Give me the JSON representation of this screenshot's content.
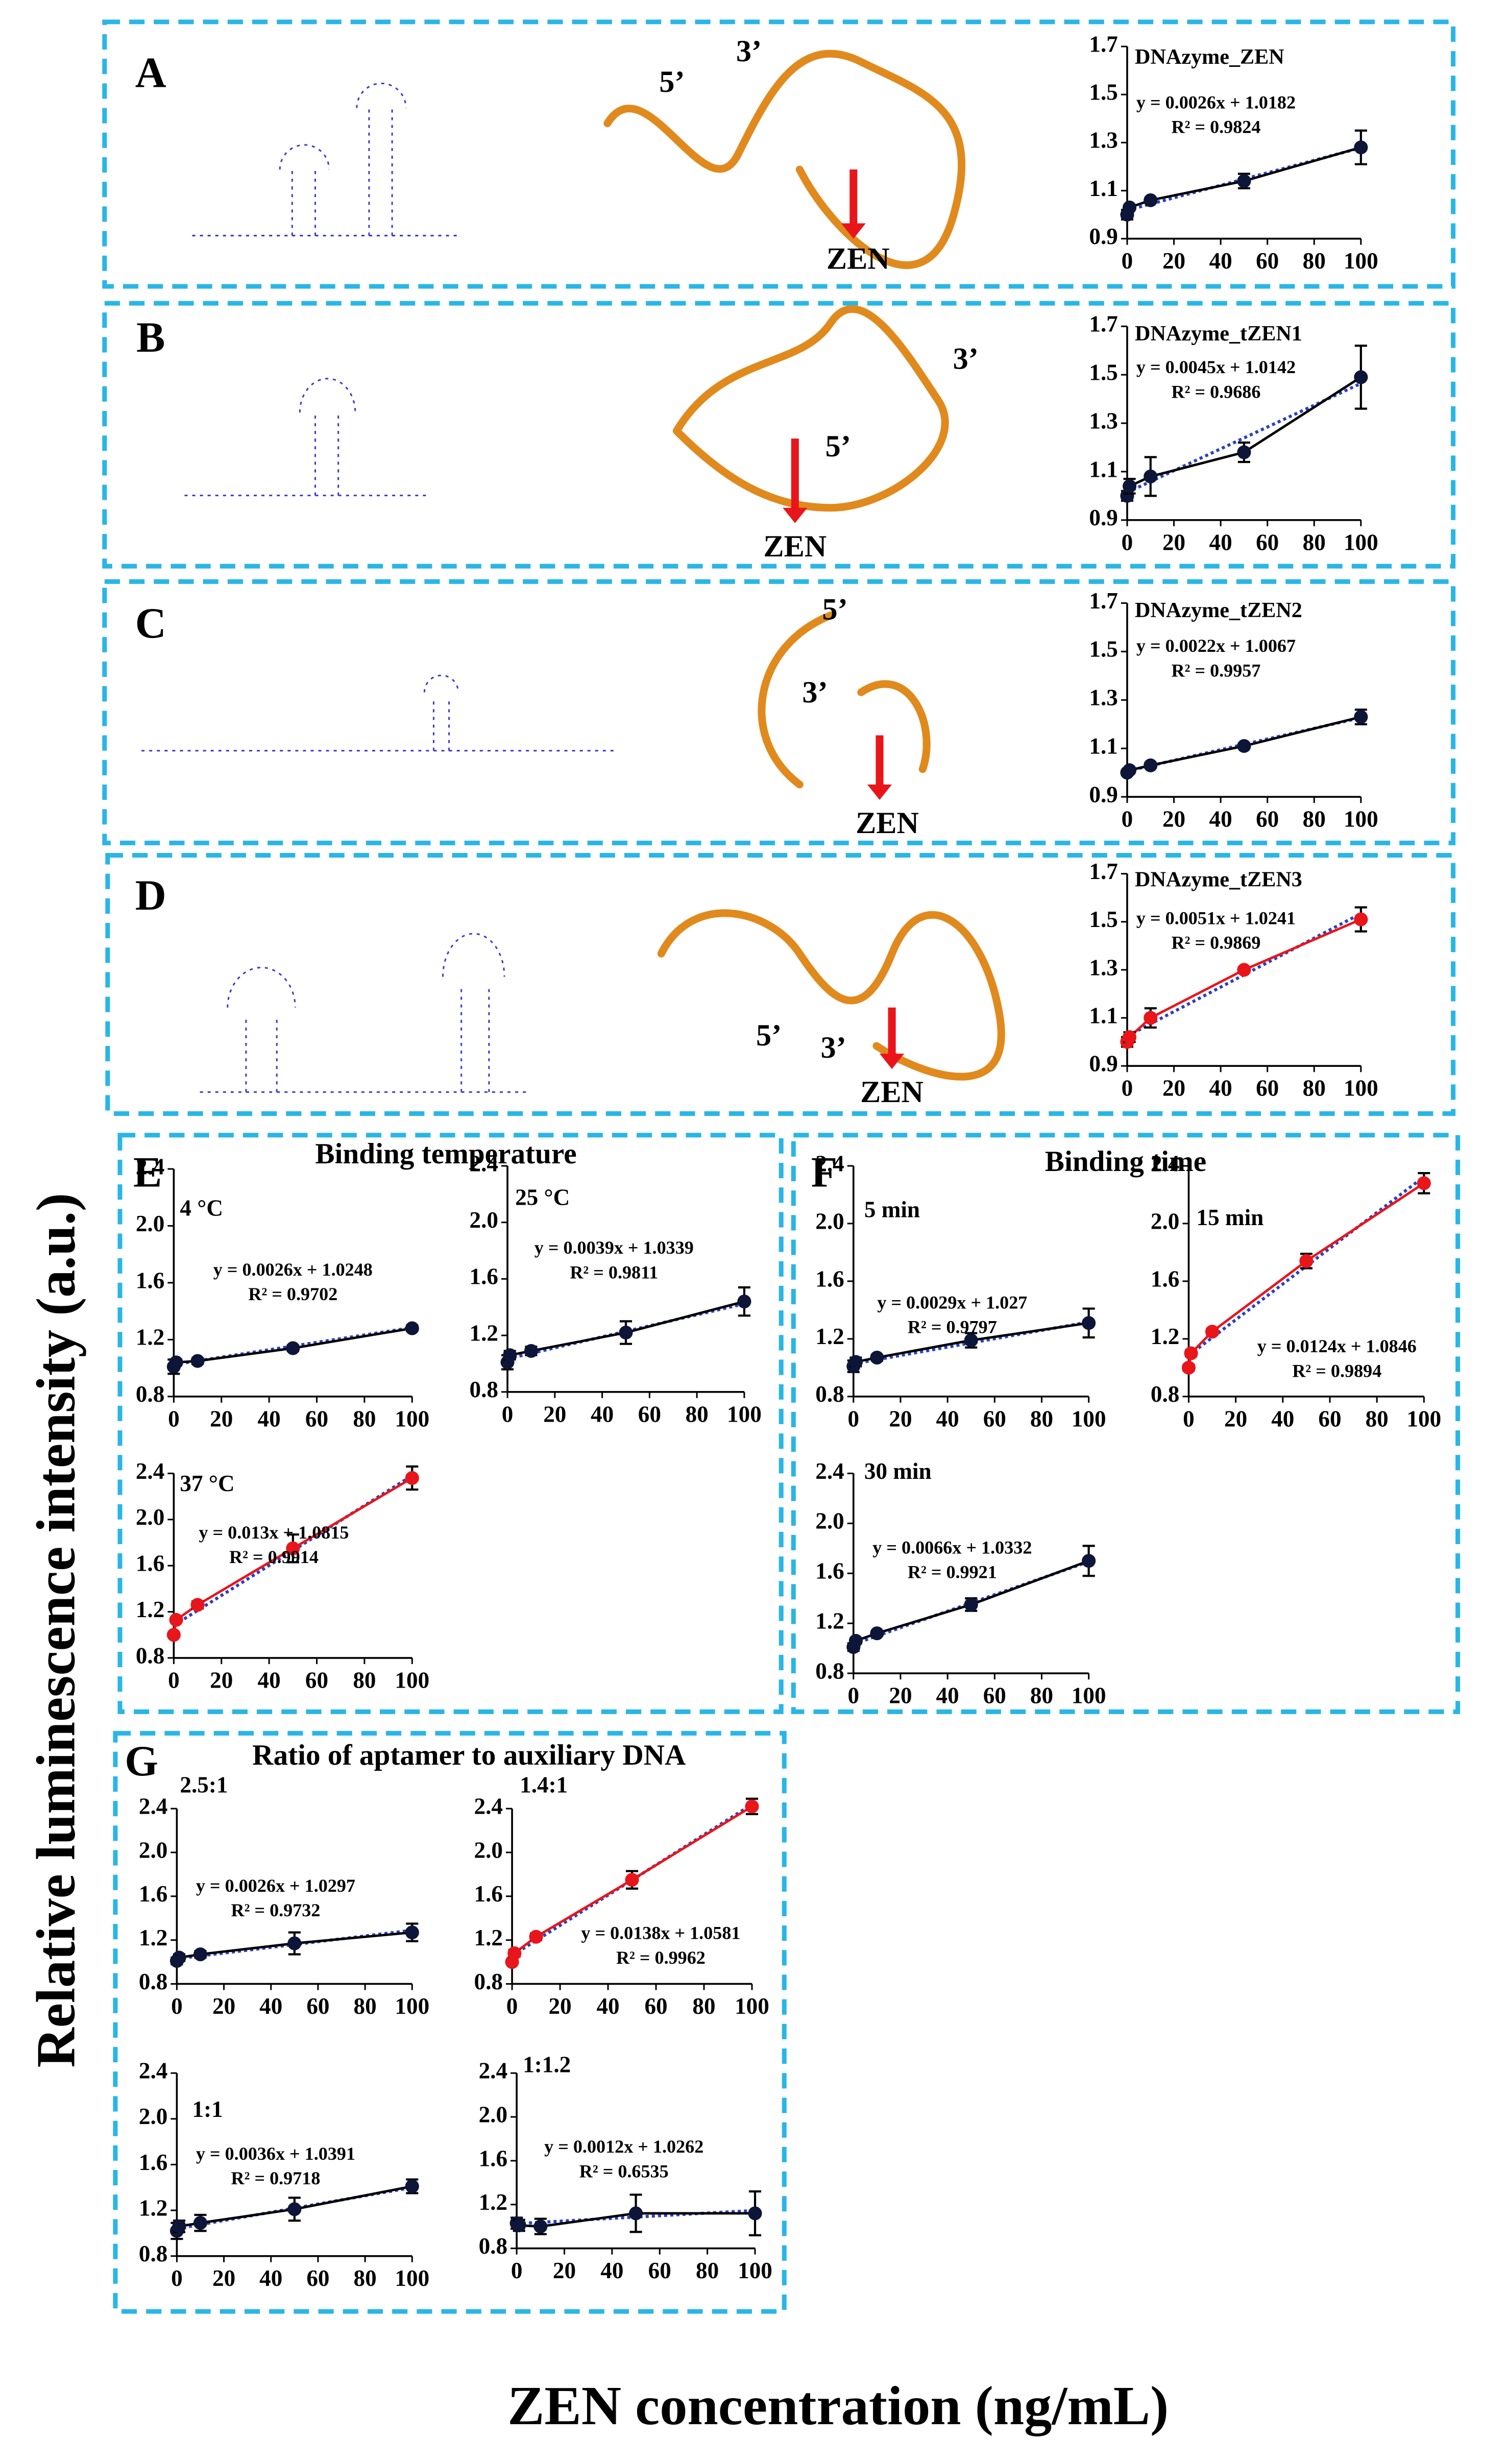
{
  "figure": {
    "y_label": "Relative luminescence intensity (a.u.)",
    "x_label": "ZEN concentration (ng/mL)",
    "panels": [
      "A",
      "B",
      "C",
      "D",
      "E",
      "F",
      "G"
    ],
    "groups": [
      "Binding temperature",
      "Binding time",
      "Ratio of aptamer to auxiliary DNA"
    ]
  },
  "structures": [
    {
      "five": "5’",
      "three": "3’",
      "target": "ZEN"
    },
    {
      "five": "5’",
      "three": "3’",
      "target": "ZEN"
    },
    {
      "five": "5’",
      "three": "3’",
      "target": "ZEN"
    },
    {
      "five": "5’",
      "three": "3’",
      "target": "ZEN"
    }
  ],
  "chart_data": [
    {
      "type": "line",
      "title": "DNAzyme_ZEN",
      "equation": "y = 0.0026x + 1.0182",
      "r2": "R² = 0.9824",
      "fit": {
        "slope": 0.0026,
        "intercept": 1.0182
      },
      "x": [
        0,
        1,
        10,
        50,
        100
      ],
      "values": [
        1.0,
        1.03,
        1.06,
        1.14,
        1.28
      ],
      "errors": [
        0.02,
        0.01,
        0.01,
        0.03,
        0.07
      ],
      "color": "#000000",
      "fit_color": "#2a3fc4",
      "xlim": [
        0,
        100
      ],
      "ylim": [
        0.9,
        1.7
      ],
      "xticks": [
        0,
        20,
        40,
        60,
        80,
        100
      ],
      "yticks": [
        0.9,
        1.1,
        1.3,
        1.5,
        1.7
      ]
    },
    {
      "type": "line",
      "title": "DNAzyme_tZEN1",
      "equation": "y = 0.0045x + 1.0142",
      "r2": "R² = 0.9686",
      "fit": {
        "slope": 0.0045,
        "intercept": 1.0142
      },
      "x": [
        0,
        1,
        10,
        50,
        100
      ],
      "values": [
        1.0,
        1.04,
        1.08,
        1.18,
        1.49
      ],
      "errors": [
        0.02,
        0.03,
        0.08,
        0.04,
        0.13
      ],
      "color": "#000000",
      "fit_color": "#2a3fc4",
      "xlim": [
        0,
        100
      ],
      "ylim": [
        0.9,
        1.7
      ],
      "xticks": [
        0,
        20,
        40,
        60,
        80,
        100
      ],
      "yticks": [
        0.9,
        1.1,
        1.3,
        1.5,
        1.7
      ]
    },
    {
      "type": "line",
      "title": "DNAzyme_tZEN2",
      "equation": "y = 0.0022x + 1.0067",
      "r2": "R² = 0.9957",
      "fit": {
        "slope": 0.0022,
        "intercept": 1.0067
      },
      "x": [
        0,
        1,
        10,
        50,
        100
      ],
      "values": [
        1.0,
        1.01,
        1.03,
        1.11,
        1.23
      ],
      "errors": [
        0.01,
        0.01,
        0.01,
        0.01,
        0.03
      ],
      "color": "#000000",
      "fit_color": "#2a3fc4",
      "xlim": [
        0,
        100
      ],
      "ylim": [
        0.9,
        1.7
      ],
      "xticks": [
        0,
        20,
        40,
        60,
        80,
        100
      ],
      "yticks": [
        0.9,
        1.1,
        1.3,
        1.5,
        1.7
      ]
    },
    {
      "type": "line",
      "title": "DNAzyme_tZEN3",
      "equation": "y = 0.0051x + 1.0241",
      "r2": "R² = 0.9869",
      "fit": {
        "slope": 0.0051,
        "intercept": 1.0241
      },
      "x": [
        0,
        1,
        10,
        50,
        100
      ],
      "values": [
        1.0,
        1.02,
        1.1,
        1.3,
        1.51
      ],
      "errors": [
        0.02,
        0.02,
        0.04,
        0.01,
        0.05
      ],
      "color": "#e8161b",
      "fit_color": "#2a3fc4",
      "xlim": [
        0,
        100
      ],
      "ylim": [
        0.9,
        1.7
      ],
      "xticks": [
        0,
        20,
        40,
        60,
        80,
        100
      ],
      "yticks": [
        0.9,
        1.1,
        1.3,
        1.5,
        1.7
      ]
    },
    {
      "type": "line",
      "title": "4 °C",
      "equation": "y = 0.0026x + 1.0248",
      "r2": "R² = 0.9702",
      "fit": {
        "slope": 0.0026,
        "intercept": 1.0248
      },
      "x": [
        0,
        1,
        10,
        50,
        100
      ],
      "values": [
        1.01,
        1.04,
        1.05,
        1.14,
        1.28
      ],
      "errors": [
        0.05,
        0.02,
        0.02,
        0.02,
        0.02
      ],
      "color": "#000000",
      "fit_color": "#2a3fc4",
      "xlim": [
        0,
        100
      ],
      "ylim": [
        0.8,
        2.4
      ],
      "xticks": [
        0,
        20,
        40,
        60,
        80,
        100
      ],
      "yticks": [
        0.8,
        1.2,
        1.6,
        {
          "value": 2,
          "label": "2.0"
        },
        2.4
      ]
    },
    {
      "type": "line",
      "title": "25 °C",
      "equation": "y = 0.0039x + 1.0339",
      "r2": "R² = 0.9811",
      "fit": {
        "slope": 0.0039,
        "intercept": 1.0339
      },
      "x": [
        0,
        1,
        10,
        50,
        100
      ],
      "values": [
        1.01,
        1.06,
        1.09,
        1.22,
        1.44
      ],
      "errors": [
        0.05,
        0.03,
        0.03,
        0.08,
        0.1
      ],
      "color": "#000000",
      "fit_color": "#2a3fc4",
      "xlim": [
        0,
        100
      ],
      "ylim": [
        0.8,
        2.4
      ],
      "xticks": [
        0,
        20,
        40,
        60,
        80,
        100
      ],
      "yticks": [
        0.8,
        1.2,
        1.6,
        {
          "value": 2,
          "label": "2.0"
        },
        2.4
      ]
    },
    {
      "type": "line",
      "title": "37 °C",
      "equation": "y = 0.013x + 1.0815",
      "r2": "R² = 0.9914",
      "fit": {
        "slope": 0.013,
        "intercept": 1.0815
      },
      "x": [
        0,
        1,
        10,
        50,
        100
      ],
      "values": [
        1.0,
        1.13,
        1.26,
        1.75,
        2.36
      ],
      "errors": [
        0.02,
        0.02,
        0.03,
        0.12,
        0.1
      ],
      "color": "#e8161b",
      "fit_color": "#2a3fc4",
      "xlim": [
        0,
        100
      ],
      "ylim": [
        0.8,
        2.4
      ],
      "xticks": [
        0,
        20,
        40,
        60,
        80,
        100
      ],
      "yticks": [
        0.8,
        1.2,
        1.6,
        {
          "value": 2,
          "label": "2.0"
        },
        2.4
      ]
    },
    {
      "type": "line",
      "title": "5 min",
      "equation": "y = 0.0029x + 1.027",
      "r2": "R² = 0.9797",
      "fit": {
        "slope": 0.0029,
        "intercept": 1.027
      },
      "x": [
        0,
        1,
        10,
        50,
        100
      ],
      "values": [
        1.01,
        1.04,
        1.07,
        1.19,
        1.31
      ],
      "errors": [
        0.04,
        0.03,
        0.02,
        0.05,
        0.1
      ],
      "color": "#000000",
      "fit_color": "#2a3fc4",
      "xlim": [
        0,
        100
      ],
      "ylim": [
        0.8,
        2.4
      ],
      "xticks": [
        0,
        20,
        40,
        60,
        80,
        100
      ],
      "yticks": [
        0.8,
        1.2,
        1.6,
        {
          "value": 2,
          "label": "2.0"
        },
        2.4
      ]
    },
    {
      "type": "line",
      "title": "15 min",
      "equation": "y = 0.0124x + 1.0846",
      "r2": "R² = 0.9894",
      "fit": {
        "slope": 0.0124,
        "intercept": 1.0846
      },
      "x": [
        0,
        1,
        10,
        50,
        100
      ],
      "values": [
        1.0,
        1.1,
        1.25,
        1.74,
        2.28
      ],
      "errors": [
        0.02,
        0.02,
        0.02,
        0.05,
        0.07
      ],
      "color": "#e8161b",
      "fit_color": "#2a3fc4",
      "xlim": [
        0,
        100
      ],
      "ylim": [
        0.8,
        2.4
      ],
      "xticks": [
        0,
        20,
        40,
        60,
        80,
        100
      ],
      "yticks": [
        0.8,
        1.2,
        1.6,
        {
          "value": 2,
          "label": "2.0"
        },
        2.4
      ]
    },
    {
      "type": "line",
      "title": "30 min",
      "equation": "y = 0.0066x + 1.0332",
      "r2": "R² = 0.9921",
      "fit": {
        "slope": 0.0066,
        "intercept": 1.0332
      },
      "x": [
        0,
        1,
        10,
        50,
        100
      ],
      "values": [
        1.01,
        1.06,
        1.12,
        1.35,
        1.7
      ],
      "errors": [
        0.03,
        0.02,
        0.02,
        0.05,
        0.12
      ],
      "color": "#000000",
      "fit_color": "#2a3fc4",
      "xlim": [
        0,
        100
      ],
      "ylim": [
        0.8,
        2.4
      ],
      "xticks": [
        0,
        20,
        40,
        60,
        80,
        100
      ],
      "yticks": [
        0.8,
        1.2,
        1.6,
        {
          "value": 2,
          "label": "2.0"
        },
        2.4
      ]
    },
    {
      "type": "line",
      "title": "2.5:1",
      "equation": "y = 0.0026x + 1.0297",
      "r2": "R² = 0.9732",
      "fit": {
        "slope": 0.0026,
        "intercept": 1.0297
      },
      "x": [
        0,
        1,
        10,
        50,
        100
      ],
      "values": [
        1.01,
        1.04,
        1.07,
        1.17,
        1.27
      ],
      "errors": [
        0.03,
        0.03,
        0.03,
        0.1,
        0.08
      ],
      "color": "#000000",
      "fit_color": "#2a3fc4",
      "xlim": [
        0,
        100
      ],
      "ylim": [
        0.8,
        2.4
      ],
      "xticks": [
        0,
        20,
        40,
        60,
        80,
        100
      ],
      "yticks": [
        0.8,
        1.2,
        1.6,
        {
          "value": 2,
          "label": "2.0"
        },
        2.4
      ]
    },
    {
      "type": "line",
      "title": "1.4:1",
      "equation": "y = 0.0138x + 1.0581",
      "r2": "R² = 0.9962",
      "fit": {
        "slope": 0.0138,
        "intercept": 1.0581
      },
      "x": [
        0,
        1,
        10,
        50,
        100
      ],
      "values": [
        1.0,
        1.08,
        1.23,
        1.75,
        2.42
      ],
      "errors": [
        0.02,
        0.03,
        0.03,
        0.08,
        0.07
      ],
      "color": "#e8161b",
      "fit_color": "#2a3fc4",
      "xlim": [
        0,
        100
      ],
      "ylim": [
        0.8,
        2.4
      ],
      "xticks": [
        0,
        20,
        40,
        60,
        80,
        100
      ],
      "yticks": [
        0.8,
        1.2,
        1.6,
        {
          "value": 2,
          "label": "2.0"
        },
        2.4
      ]
    },
    {
      "type": "line",
      "title": "1:1",
      "equation": "y = 0.0036x + 1.0391",
      "r2": "R² = 0.9718",
      "fit": {
        "slope": 0.0036,
        "intercept": 1.0391
      },
      "x": [
        0,
        1,
        10,
        50,
        100
      ],
      "values": [
        1.02,
        1.06,
        1.09,
        1.21,
        1.41
      ],
      "errors": [
        0.07,
        0.05,
        0.07,
        0.1,
        0.06
      ],
      "color": "#000000",
      "fit_color": "#2a3fc4",
      "xlim": [
        0,
        100
      ],
      "ylim": [
        0.8,
        2.4
      ],
      "xticks": [
        0,
        20,
        40,
        60,
        80,
        100
      ],
      "yticks": [
        0.8,
        1.2,
        1.6,
        {
          "value": 2,
          "label": "2.0"
        },
        2.4
      ]
    },
    {
      "type": "line",
      "title": "1:1.2",
      "equation": "y = 0.0012x + 1.0262",
      "r2": "R² = 0.6535",
      "fit": {
        "slope": 0.0012,
        "intercept": 1.0262
      },
      "x": [
        0,
        1,
        10,
        50,
        100
      ],
      "values": [
        1.03,
        1.01,
        1.0,
        1.12,
        1.12
      ],
      "errors": [
        0.05,
        0.05,
        0.07,
        0.17,
        0.2
      ],
      "color": "#000000",
      "fit_color": "#2a3fc4",
      "xlim": [
        0,
        100
      ],
      "ylim": [
        0.8,
        2.4
      ],
      "xticks": [
        0,
        20,
        40,
        60,
        80,
        100
      ],
      "yticks": [
        0.8,
        1.2,
        1.6,
        {
          "value": 2,
          "label": "2.0"
        },
        2.4
      ]
    }
  ]
}
